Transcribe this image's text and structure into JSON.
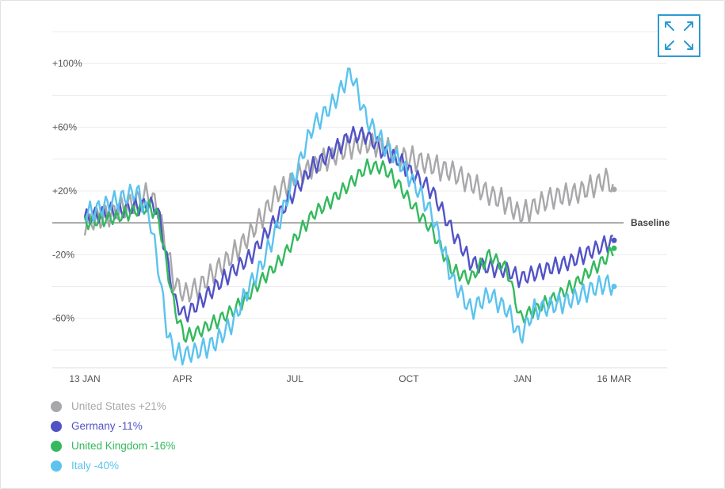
{
  "chart_data": {
    "type": "line",
    "y_ticks": [
      "+100%",
      "+60%",
      "+20%",
      "-20%",
      "-60%"
    ],
    "y_tick_values": [
      100,
      60,
      20,
      -20,
      -60
    ],
    "x_ticks": [
      "13 JAN",
      "APR",
      "JUL",
      "OCT",
      "JAN",
      "16 MAR"
    ],
    "x_tick_dates": [
      "2020-01-13",
      "2020-04-01",
      "2020-07-01",
      "2020-10-01",
      "2021-01-01",
      "2021-03-16"
    ],
    "baseline_label": "Baseline",
    "baseline_value": 0,
    "ylim": [
      -90,
      120
    ],
    "grid": true,
    "series": [
      {
        "name": "United States +21%",
        "color": "#a8a8ab",
        "points": [
          [
            "2020-01-13",
            0
          ],
          [
            "2020-01-27",
            3
          ],
          [
            "2020-02-10",
            8
          ],
          [
            "2020-02-24",
            14
          ],
          [
            "2020-03-05",
            18
          ],
          [
            "2020-03-12",
            10
          ],
          [
            "2020-03-20",
            -20
          ],
          [
            "2020-03-26",
            -38
          ],
          [
            "2020-04-03",
            -45
          ],
          [
            "2020-04-15",
            -40
          ],
          [
            "2020-04-28",
            -30
          ],
          [
            "2020-05-12",
            -20
          ],
          [
            "2020-05-25",
            -8
          ],
          [
            "2020-06-05",
            5
          ],
          [
            "2020-06-18",
            20
          ],
          [
            "2020-07-01",
            28
          ],
          [
            "2020-07-15",
            35
          ],
          [
            "2020-08-01",
            42
          ],
          [
            "2020-08-15",
            48
          ],
          [
            "2020-08-28",
            50
          ],
          [
            "2020-09-10",
            48
          ],
          [
            "2020-09-22",
            42
          ],
          [
            "2020-10-05",
            40
          ],
          [
            "2020-10-20",
            36
          ],
          [
            "2020-11-05",
            32
          ],
          [
            "2020-11-20",
            25
          ],
          [
            "2020-12-05",
            18
          ],
          [
            "2020-12-20",
            12
          ],
          [
            "2020-12-30",
            5
          ],
          [
            "2021-01-10",
            10
          ],
          [
            "2021-01-25",
            16
          ],
          [
            "2021-02-10",
            18
          ],
          [
            "2021-02-25",
            22
          ],
          [
            "2021-03-10",
            28
          ],
          [
            "2021-03-16",
            21
          ]
        ]
      },
      {
        "name": "Germany -11%",
        "color": "#5252c7",
        "points": [
          [
            "2020-01-13",
            3
          ],
          [
            "2020-01-27",
            6
          ],
          [
            "2020-02-10",
            8
          ],
          [
            "2020-02-24",
            10
          ],
          [
            "2020-03-05",
            12
          ],
          [
            "2020-03-12",
            8
          ],
          [
            "2020-03-20",
            -25
          ],
          [
            "2020-03-26",
            -50
          ],
          [
            "2020-04-03",
            -58
          ],
          [
            "2020-04-15",
            -50
          ],
          [
            "2020-04-28",
            -40
          ],
          [
            "2020-05-12",
            -30
          ],
          [
            "2020-05-25",
            -22
          ],
          [
            "2020-06-05",
            -10
          ],
          [
            "2020-06-18",
            5
          ],
          [
            "2020-07-01",
            20
          ],
          [
            "2020-07-15",
            35
          ],
          [
            "2020-08-01",
            45
          ],
          [
            "2020-08-15",
            55
          ],
          [
            "2020-08-28",
            55
          ],
          [
            "2020-09-10",
            45
          ],
          [
            "2020-09-22",
            40
          ],
          [
            "2020-10-05",
            30
          ],
          [
            "2020-10-20",
            20
          ],
          [
            "2020-11-05",
            -5
          ],
          [
            "2020-11-20",
            -25
          ],
          [
            "2020-12-05",
            -28
          ],
          [
            "2020-12-20",
            -30
          ],
          [
            "2020-12-30",
            -35
          ],
          [
            "2021-01-10",
            -32
          ],
          [
            "2021-01-25",
            -28
          ],
          [
            "2021-02-10",
            -24
          ],
          [
            "2021-02-25",
            -18
          ],
          [
            "2021-03-10",
            -13
          ],
          [
            "2021-03-16",
            -11
          ]
        ]
      },
      {
        "name": "United Kingdom -16%",
        "color": "#34b95e",
        "points": [
          [
            "2020-01-13",
            0
          ],
          [
            "2020-01-27",
            2
          ],
          [
            "2020-02-10",
            4
          ],
          [
            "2020-02-24",
            8
          ],
          [
            "2020-03-05",
            10
          ],
          [
            "2020-03-12",
            5
          ],
          [
            "2020-03-20",
            -30
          ],
          [
            "2020-03-26",
            -55
          ],
          [
            "2020-04-03",
            -72
          ],
          [
            "2020-04-15",
            -68
          ],
          [
            "2020-04-28",
            -62
          ],
          [
            "2020-05-12",
            -55
          ],
          [
            "2020-05-25",
            -45
          ],
          [
            "2020-06-05",
            -35
          ],
          [
            "2020-06-18",
            -25
          ],
          [
            "2020-07-01",
            -10
          ],
          [
            "2020-07-15",
            5
          ],
          [
            "2020-08-01",
            15
          ],
          [
            "2020-08-15",
            25
          ],
          [
            "2020-08-28",
            35
          ],
          [
            "2020-09-10",
            35
          ],
          [
            "2020-09-22",
            25
          ],
          [
            "2020-10-05",
            10
          ],
          [
            "2020-10-20",
            -5
          ],
          [
            "2020-11-05",
            -30
          ],
          [
            "2020-11-20",
            -35
          ],
          [
            "2020-12-05",
            -20
          ],
          [
            "2020-12-20",
            -30
          ],
          [
            "2020-12-30",
            -60
          ],
          [
            "2021-01-10",
            -55
          ],
          [
            "2021-01-25",
            -48
          ],
          [
            "2021-02-10",
            -40
          ],
          [
            "2021-02-25",
            -30
          ],
          [
            "2021-03-10",
            -22
          ],
          [
            "2021-03-16",
            -16
          ]
        ]
      },
      {
        "name": "Italy -40%",
        "color": "#5bc3ee",
        "points": [
          [
            "2020-01-13",
            5
          ],
          [
            "2020-01-27",
            10
          ],
          [
            "2020-02-10",
            15
          ],
          [
            "2020-02-24",
            20
          ],
          [
            "2020-03-05",
            5
          ],
          [
            "2020-03-12",
            -25
          ],
          [
            "2020-03-20",
            -70
          ],
          [
            "2020-03-26",
            -82
          ],
          [
            "2020-04-03",
            -83
          ],
          [
            "2020-04-15",
            -80
          ],
          [
            "2020-04-28",
            -75
          ],
          [
            "2020-05-12",
            -62
          ],
          [
            "2020-05-25",
            -40
          ],
          [
            "2020-06-05",
            -25
          ],
          [
            "2020-06-18",
            0
          ],
          [
            "2020-07-01",
            30
          ],
          [
            "2020-07-15",
            60
          ],
          [
            "2020-08-01",
            75
          ],
          [
            "2020-08-15",
            95
          ],
          [
            "2020-08-28",
            65
          ],
          [
            "2020-09-10",
            50
          ],
          [
            "2020-09-22",
            40
          ],
          [
            "2020-10-05",
            25
          ],
          [
            "2020-10-20",
            5
          ],
          [
            "2020-11-05",
            -35
          ],
          [
            "2020-11-20",
            -55
          ],
          [
            "2020-12-05",
            -45
          ],
          [
            "2020-12-20",
            -55
          ],
          [
            "2020-12-30",
            -72
          ],
          [
            "2021-01-10",
            -55
          ],
          [
            "2021-01-25",
            -52
          ],
          [
            "2021-02-10",
            -48
          ],
          [
            "2021-02-25",
            -42
          ],
          [
            "2021-03-10",
            -38
          ],
          [
            "2021-03-16",
            -40
          ]
        ]
      }
    ]
  },
  "legend": {
    "items": [
      {
        "label": "United States +21%",
        "color": "#a8a8ab"
      },
      {
        "label": "Germany -11%",
        "color": "#5252c7"
      },
      {
        "label": "United Kingdom -16%",
        "color": "#34b95e"
      },
      {
        "label": "Italy -40%",
        "color": "#5bc3ee"
      }
    ]
  },
  "toolbar": {
    "expand_icon": "expand-icon"
  }
}
